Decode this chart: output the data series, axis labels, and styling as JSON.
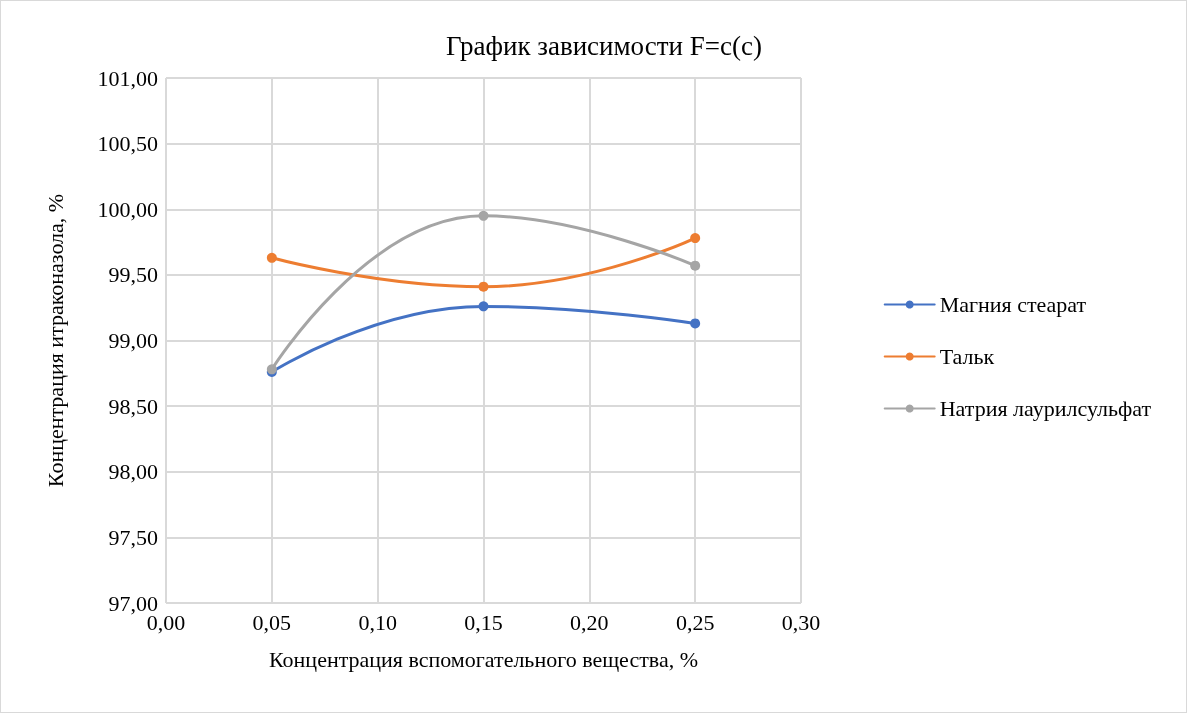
{
  "chart_data": {
    "type": "line",
    "title": "График зависимости F=c(c)",
    "xlabel": "Концентрация вспомогательного вещества, %",
    "ylabel": "Концентрация итраконазола, %",
    "x": [
      0.05,
      0.15,
      0.25
    ],
    "series": [
      {
        "name": "Магния стеарат",
        "color": "#4472c4",
        "values": [
          98.76,
          99.26,
          99.13
        ]
      },
      {
        "name": "Тальк",
        "color": "#ed7d31",
        "values": [
          99.63,
          99.41,
          99.78
        ]
      },
      {
        "name": "Натрия лаурилсульфат",
        "color": "#a5a5a5",
        "values": [
          98.78,
          99.95,
          99.57
        ]
      }
    ],
    "xlim": [
      0,
      0.3
    ],
    "xticks": [
      {
        "value": 0,
        "label": "0,00"
      },
      {
        "value": 0.05,
        "label": "0,05"
      },
      {
        "value": 0.1,
        "label": "0,10"
      },
      {
        "value": 0.15,
        "label": "0,15"
      },
      {
        "value": 0.2,
        "label": "0,20"
      },
      {
        "value": 0.25,
        "label": "0,25"
      },
      {
        "value": 0.3,
        "label": "0,30"
      }
    ],
    "ylim": [
      97,
      101
    ],
    "yticks": [
      {
        "value": 97,
        "label": "97,00"
      },
      {
        "value": 97.5,
        "label": "97,50"
      },
      {
        "value": 98,
        "label": "98,00"
      },
      {
        "value": 98.5,
        "label": "98,50"
      },
      {
        "value": 99,
        "label": "99,00"
      },
      {
        "value": 99.5,
        "label": "99,50"
      },
      {
        "value": 100,
        "label": "100,00"
      },
      {
        "value": 100.5,
        "label": "100,50"
      },
      {
        "value": 101,
        "label": "101,00"
      }
    ],
    "grid": true,
    "legend": "right",
    "marker": "circle",
    "line_style": "solid"
  }
}
